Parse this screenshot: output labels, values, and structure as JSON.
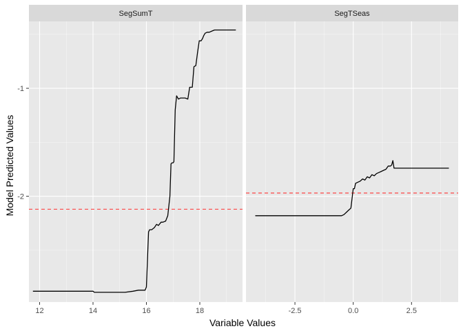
{
  "chart_data": {
    "type": "line",
    "xlabel": "Variable Values",
    "ylabel": "Model Predicted Values",
    "ylim": [
      -2.98,
      -0.38
    ],
    "y_ticks": [
      -2,
      -1
    ],
    "y_tick_labels": [
      "-2",
      "-1"
    ],
    "grid": true,
    "colors": {
      "panel_bg": "#e8e8e8",
      "strip_bg": "#d9d9d9",
      "grid_major": "#ffffff",
      "line": "#000000",
      "reference": "#ff3333"
    },
    "panels": [
      {
        "label": "SegSumT",
        "xlim": [
          11.6,
          19.6
        ],
        "x_ticks": [
          12,
          14,
          16,
          18
        ],
        "x_tick_labels": [
          "12",
          "14",
          "16",
          "18"
        ],
        "reference_y": -2.12,
        "series": {
          "x": [
            11.75,
            14.0,
            14.05,
            15.2,
            15.5,
            15.7,
            15.95,
            16.0,
            16.08,
            16.12,
            16.2,
            16.3,
            16.38,
            16.45,
            16.55,
            16.62,
            16.72,
            16.8,
            16.88,
            16.92,
            16.96,
            17.0,
            17.03,
            17.08,
            17.13,
            17.2,
            17.28,
            17.35,
            17.45,
            17.55,
            17.62,
            17.66,
            17.72,
            17.78,
            17.85,
            17.92,
            17.98,
            18.05,
            18.1,
            18.15,
            18.2,
            18.28,
            18.36,
            18.45,
            18.55,
            18.65,
            18.75,
            18.9,
            19.1,
            19.3,
            19.35
          ],
          "y": [
            -2.88,
            -2.88,
            -2.89,
            -2.89,
            -2.88,
            -2.87,
            -2.87,
            -2.84,
            -2.33,
            -2.31,
            -2.31,
            -2.29,
            -2.26,
            -2.27,
            -2.24,
            -2.24,
            -2.23,
            -2.18,
            -2.0,
            -1.7,
            -1.69,
            -1.69,
            -1.68,
            -1.2,
            -1.07,
            -1.1,
            -1.09,
            -1.09,
            -1.09,
            -1.1,
            -0.99,
            -0.99,
            -0.99,
            -0.8,
            -0.79,
            -0.66,
            -0.56,
            -0.56,
            -0.54,
            -0.51,
            -0.49,
            -0.48,
            -0.48,
            -0.47,
            -0.46,
            -0.46,
            -0.46,
            -0.46,
            -0.46,
            -0.46,
            -0.46
          ]
        }
      },
      {
        "label": "SegTSeas",
        "xlim": [
          -4.6,
          4.5
        ],
        "x_ticks": [
          -2.5,
          0.0,
          2.5
        ],
        "x_tick_labels": [
          "-2.5",
          "0.0",
          "2.5"
        ],
        "reference_y": -1.97,
        "series": {
          "x": [
            -4.2,
            -0.5,
            -0.4,
            -0.3,
            -0.2,
            -0.1,
            -0.05,
            0.0,
            0.05,
            0.1,
            0.2,
            0.3,
            0.4,
            0.5,
            0.6,
            0.7,
            0.8,
            0.9,
            1.0,
            1.1,
            1.2,
            1.3,
            1.4,
            1.5,
            1.6,
            1.65,
            1.7,
            1.75,
            1.8,
            2.5,
            4.1
          ],
          "y": [
            -2.18,
            -2.18,
            -2.17,
            -2.15,
            -2.13,
            -2.11,
            -2.02,
            -1.93,
            -1.93,
            -1.88,
            -1.87,
            -1.86,
            -1.84,
            -1.85,
            -1.82,
            -1.83,
            -1.8,
            -1.81,
            -1.79,
            -1.78,
            -1.77,
            -1.76,
            -1.75,
            -1.72,
            -1.72,
            -1.71,
            -1.67,
            -1.74,
            -1.74,
            -1.74,
            -1.74
          ]
        }
      }
    ]
  }
}
